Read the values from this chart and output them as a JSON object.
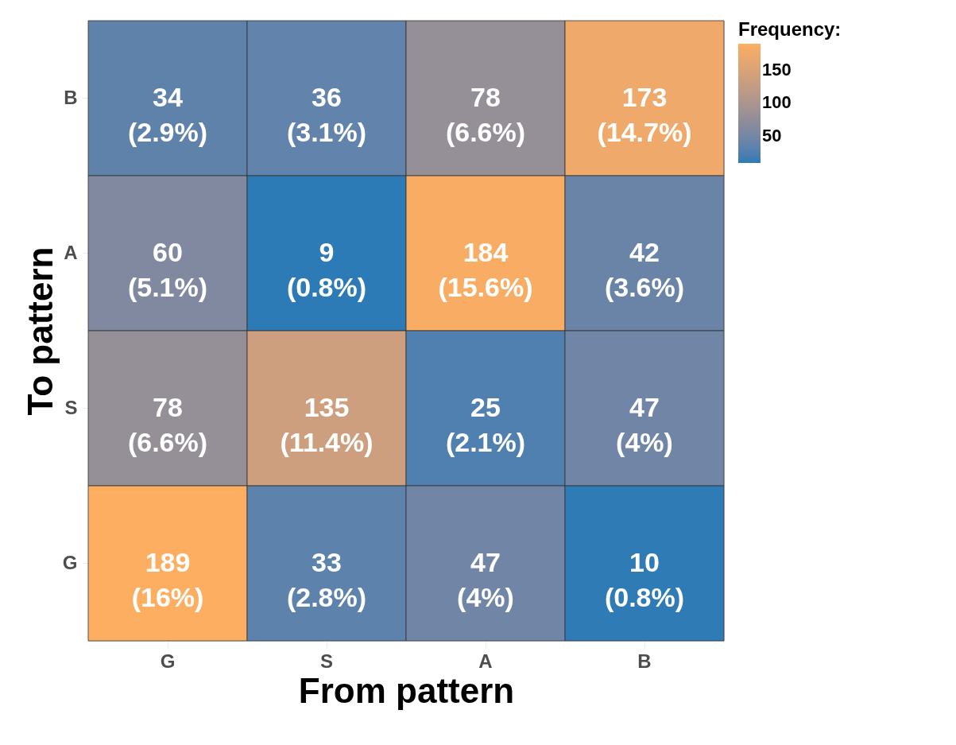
{
  "chart_data": {
    "type": "heatmap",
    "xlabel": "From pattern",
    "ylabel": "To pattern",
    "clabel": "Frequency:",
    "categories": [
      "G",
      "S",
      "A",
      "B"
    ],
    "y_categories": [
      "B",
      "A",
      "S",
      "G"
    ],
    "cells": [
      [
        34,
        36,
        78,
        173
      ],
      [
        60,
        9,
        184,
        42
      ],
      [
        78,
        135,
        25,
        47
      ],
      [
        189,
        33,
        47,
        10
      ]
    ],
    "cell_labels": [
      [
        "34\n(2.9%)",
        "36\n(3.1%)",
        "78\n(6.6%)",
        "173\n(14.7%)"
      ],
      [
        "60\n(5.1%)",
        "9\n(0.8%)",
        "184\n(15.6%)",
        "42\n(3.6%)"
      ],
      [
        "78\n(6.6%)",
        "135\n(11.4%)",
        "25\n(2.1%)",
        "47\n(4%)"
      ],
      [
        "189\n(16%)",
        "33\n(2.8%)",
        "47\n(4%)",
        "10\n(0.8%)"
      ]
    ],
    "clim": [
      9,
      189
    ],
    "cticks": [
      50,
      100,
      150
    ]
  }
}
